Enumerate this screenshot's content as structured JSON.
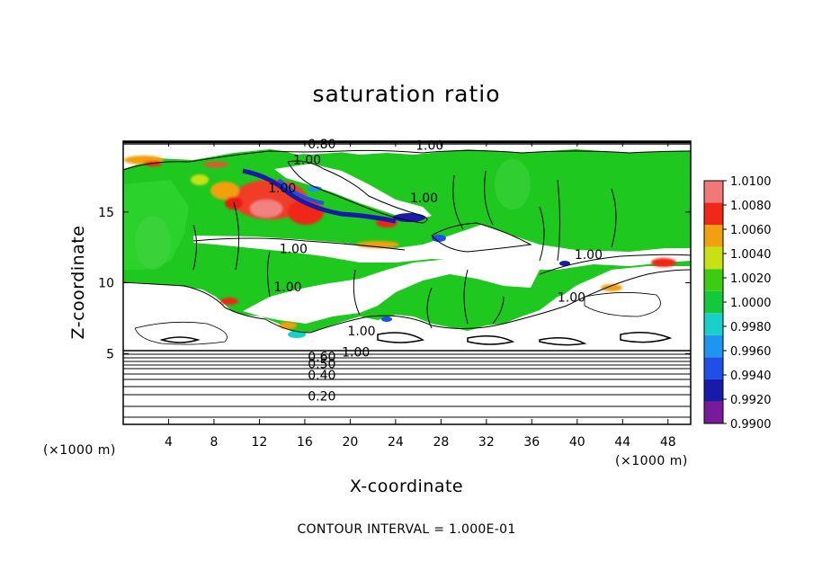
{
  "chart_data": {
    "type": "heatmap",
    "title": "saturation ratio",
    "xlabel": "X-coordinate",
    "ylabel": "Z-coordinate",
    "x_unit": "(×1000 m)",
    "z_unit": "(×1000 m)",
    "xlim": [
      0,
      50
    ],
    "ylim": [
      0,
      20
    ],
    "x_ticks": [
      4,
      8,
      12,
      16,
      20,
      24,
      28,
      32,
      36,
      40,
      44,
      48
    ],
    "y_ticks": [
      5,
      10,
      15
    ],
    "contour_interval_text": "CONTOUR INTERVAL = 1.000E-01",
    "colorbar": {
      "min": 0.99,
      "max": 1.01,
      "ticks": [
        "0.9900",
        "0.9920",
        "0.9940",
        "0.9960",
        "0.9980",
        "1.0000",
        "1.0020",
        "1.0040",
        "1.0060",
        "1.0080",
        "1.0100"
      ],
      "colors": [
        "#7a1a9a",
        "#1a1aa8",
        "#1f4fe6",
        "#1e96f0",
        "#18d0c8",
        "#14c83c",
        "#3ccc14",
        "#c8e014",
        "#f0a010",
        "#f02818",
        "#f07878"
      ]
    },
    "contour_labels": [
      {
        "text": "0.80",
        "x": 17.5,
        "z": 19.8
      },
      {
        "text": "1.00",
        "x": 27,
        "z": 19.7
      },
      {
        "text": "1.00",
        "x": 16.2,
        "z": 18.7
      },
      {
        "text": "1.00",
        "x": 14,
        "z": 16.7
      },
      {
        "text": "1.00",
        "x": 26.5,
        "z": 16.0
      },
      {
        "text": "1.00",
        "x": 15,
        "z": 12.4
      },
      {
        "text": "1.00",
        "x": 14.5,
        "z": 9.7
      },
      {
        "text": "1.00",
        "x": 41,
        "z": 12.0
      },
      {
        "text": "1.00",
        "x": 39.5,
        "z": 9.0
      },
      {
        "text": "1.00",
        "x": 21,
        "z": 6.6
      },
      {
        "text": "1.00",
        "x": 20.5,
        "z": 5.1
      },
      {
        "text": "0.60",
        "x": 17.5,
        "z": 4.8
      },
      {
        "text": "0.50",
        "x": 17.5,
        "z": 4.3
      },
      {
        "text": "0.40",
        "x": 17.5,
        "z": 3.5
      },
      {
        "text": "0.20",
        "x": 17.5,
        "z": 2.0
      }
    ]
  }
}
